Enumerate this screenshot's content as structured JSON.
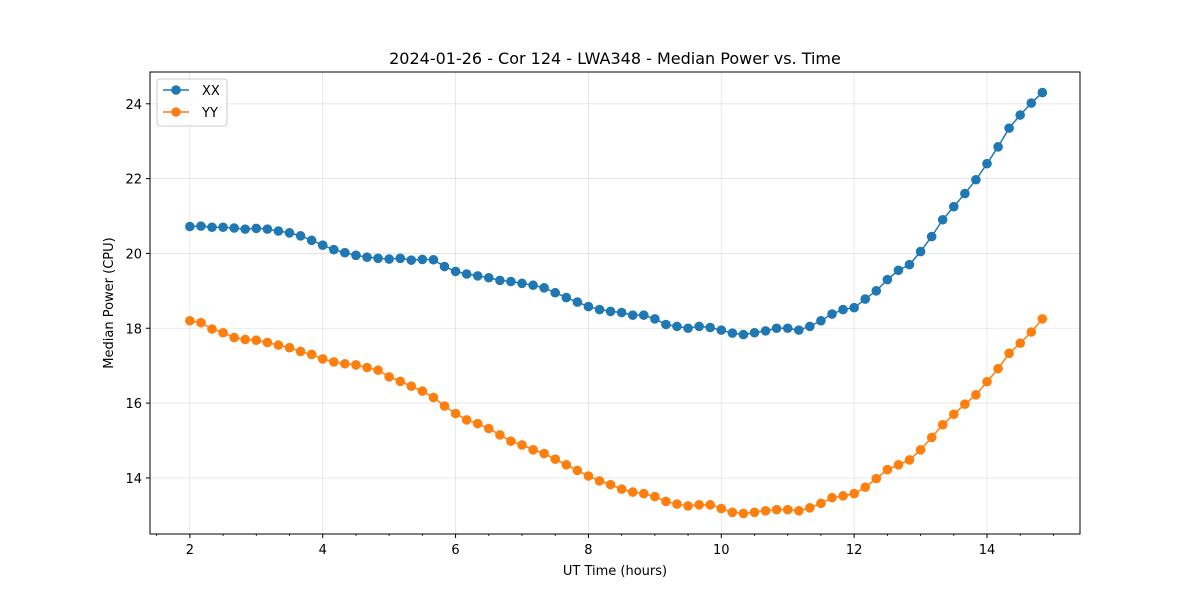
{
  "chart_data": {
    "type": "line",
    "title": "2024-01-26 - Cor 124 - LWA348 - Median Power vs. Time",
    "xlabel": "UT Time (hours)",
    "ylabel": "Median Power (CPU)",
    "xlim": [
      1.4,
      15.4
    ],
    "ylim": [
      12.5,
      24.85
    ],
    "xticks": [
      2,
      4,
      6,
      8,
      10,
      12,
      14
    ],
    "yticks": [
      14,
      16,
      18,
      20,
      22,
      24
    ],
    "x_minor_step": 0.5,
    "grid": true,
    "legend_position": "upper left",
    "x": [
      2.0,
      2.167,
      2.333,
      2.5,
      2.667,
      2.833,
      3.0,
      3.167,
      3.333,
      3.5,
      3.667,
      3.833,
      4.0,
      4.167,
      4.333,
      4.5,
      4.667,
      4.833,
      5.0,
      5.167,
      5.333,
      5.5,
      5.667,
      5.833,
      6.0,
      6.167,
      6.333,
      6.5,
      6.667,
      6.833,
      7.0,
      7.167,
      7.333,
      7.5,
      7.667,
      7.833,
      8.0,
      8.167,
      8.333,
      8.5,
      8.667,
      8.833,
      9.0,
      9.167,
      9.333,
      9.5,
      9.667,
      9.833,
      10.0,
      10.167,
      10.333,
      10.5,
      10.667,
      10.833,
      11.0,
      11.167,
      11.333,
      11.5,
      11.667,
      11.833,
      12.0,
      12.167,
      12.333,
      12.5,
      12.667,
      12.833,
      13.0,
      13.167,
      13.333,
      13.5,
      13.667,
      13.833,
      14.0,
      14.167,
      14.333,
      14.5,
      14.667,
      14.833
    ],
    "series": [
      {
        "name": "XX",
        "color": "#1f77b4",
        "values": [
          20.72,
          20.73,
          20.7,
          20.7,
          20.68,
          20.65,
          20.67,
          20.65,
          20.6,
          20.55,
          20.47,
          20.35,
          20.22,
          20.1,
          20.02,
          19.95,
          19.9,
          19.87,
          19.85,
          19.87,
          19.82,
          19.84,
          19.83,
          19.65,
          19.52,
          19.45,
          19.4,
          19.35,
          19.28,
          19.25,
          19.2,
          19.15,
          19.08,
          18.95,
          18.82,
          18.7,
          18.58,
          18.5,
          18.45,
          18.42,
          18.35,
          18.35,
          18.25,
          18.1,
          18.05,
          18.0,
          18.05,
          18.02,
          17.95,
          17.87,
          17.83,
          17.88,
          17.93,
          18.0,
          18.0,
          17.95,
          18.05,
          18.2,
          18.38,
          18.5,
          18.55,
          18.78,
          19.0,
          19.3,
          19.55,
          19.7,
          20.05,
          20.45,
          20.9,
          21.25,
          21.6,
          21.97,
          22.4,
          22.85,
          23.35,
          23.7,
          24.02,
          24.3
        ]
      },
      {
        "name": "YY",
        "color": "#ff7f0e",
        "values": [
          18.2,
          18.15,
          17.98,
          17.88,
          17.75,
          17.7,
          17.68,
          17.62,
          17.55,
          17.48,
          17.38,
          17.3,
          17.18,
          17.1,
          17.05,
          17.02,
          16.95,
          16.88,
          16.7,
          16.58,
          16.45,
          16.32,
          16.15,
          15.92,
          15.72,
          15.55,
          15.45,
          15.32,
          15.15,
          14.98,
          14.88,
          14.75,
          14.65,
          14.5,
          14.35,
          14.2,
          14.05,
          13.92,
          13.82,
          13.7,
          13.62,
          13.58,
          13.5,
          13.37,
          13.3,
          13.25,
          13.28,
          13.28,
          13.18,
          13.08,
          13.05,
          13.08,
          13.12,
          13.15,
          13.15,
          13.12,
          13.2,
          13.32,
          13.47,
          13.52,
          13.58,
          13.75,
          13.98,
          14.22,
          14.35,
          14.48,
          14.75,
          15.08,
          15.42,
          15.7,
          15.97,
          16.22,
          16.57,
          16.92,
          17.33,
          17.6,
          17.9,
          18.25
        ]
      }
    ]
  }
}
